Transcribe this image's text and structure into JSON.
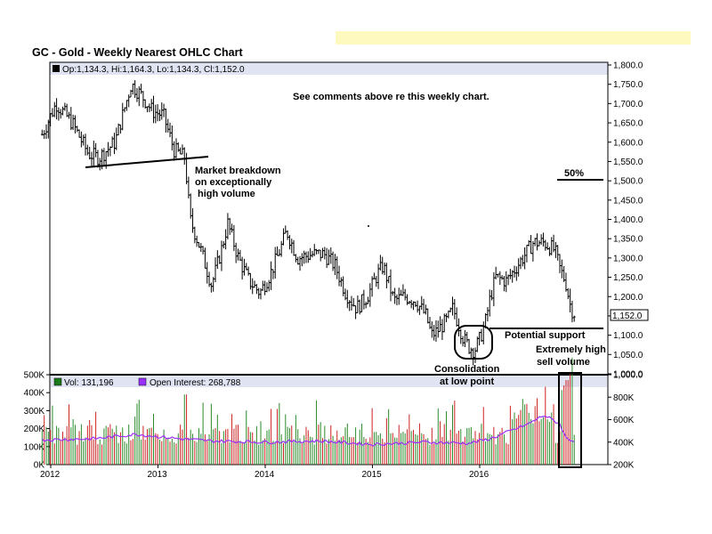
{
  "chart_data": {
    "type": "ohlc",
    "title": "GC - Gold - Weekly Nearest OHLC Chart",
    "legend_price": "Op:1,134.3, Hi:1,164.3, Lo:1,134.3, Cl:1,152.0",
    "last_price_label": "1,152.0",
    "x_tick_labels": [
      "2012",
      "2013",
      "2014",
      "2015",
      "2016"
    ],
    "price_axis": {
      "min": 1000,
      "max": 1800,
      "step": 50,
      "tick_labels": [
        "1,000.0",
        "1,050.0",
        "1,100.0",
        "1,150.0",
        "1,200.0",
        "1,250.0",
        "1,300.0",
        "1,350.0",
        "1,400.0",
        "1,450.0",
        "1,500.0",
        "1,550.0",
        "1,600.0",
        "1,650.0",
        "1,700.0",
        "1,750.0",
        "1,800.0"
      ]
    },
    "volume_axis": {
      "min": 0,
      "max": 500000,
      "tick_labels": [
        "0K",
        "100K",
        "200K",
        "300K",
        "400K",
        "500K"
      ]
    },
    "oi_axis": {
      "min": 200000,
      "max": 1000000,
      "tick_labels": [
        "200K",
        "400K",
        "600K",
        "800K",
        "1,000.0"
      ]
    },
    "volume_legend": "Vol: 131,196",
    "oi_legend": "Open Interest: 268,788",
    "price_anchors": [
      [
        2011.92,
        1620
      ],
      [
        2012.05,
        1700
      ],
      [
        2012.2,
        1650
      ],
      [
        2012.35,
        1570
      ],
      [
        2012.45,
        1560
      ],
      [
        2012.6,
        1600
      ],
      [
        2012.75,
        1750
      ],
      [
        2012.85,
        1720
      ],
      [
        2012.95,
        1680
      ],
      [
        2013.05,
        1670
      ],
      [
        2013.15,
        1580
      ],
      [
        2013.25,
        1560
      ],
      [
        2013.3,
        1400
      ],
      [
        2013.4,
        1320
      ],
      [
        2013.5,
        1230
      ],
      [
        2013.6,
        1330
      ],
      [
        2013.65,
        1390
      ],
      [
        2013.75,
        1300
      ],
      [
        2013.85,
        1240
      ],
      [
        2013.95,
        1210
      ],
      [
        2014.05,
        1260
      ],
      [
        2014.15,
        1330
      ],
      [
        2014.2,
        1370
      ],
      [
        2014.3,
        1300
      ],
      [
        2014.45,
        1310
      ],
      [
        2014.55,
        1310
      ],
      [
        2014.65,
        1280
      ],
      [
        2014.75,
        1210
      ],
      [
        2014.85,
        1170
      ],
      [
        2014.95,
        1200
      ],
      [
        2015.05,
        1260
      ],
      [
        2015.1,
        1280
      ],
      [
        2015.2,
        1190
      ],
      [
        2015.3,
        1200
      ],
      [
        2015.4,
        1190
      ],
      [
        2015.5,
        1150
      ],
      [
        2015.55,
        1100
      ],
      [
        2015.6,
        1110
      ],
      [
        2015.7,
        1140
      ],
      [
        2015.75,
        1170
      ],
      [
        2015.85,
        1090
      ],
      [
        2015.9,
        1070
      ],
      [
        2015.95,
        1060
      ],
      [
        2016.0,
        1090
      ],
      [
        2016.05,
        1130
      ],
      [
        2016.1,
        1200
      ],
      [
        2016.15,
        1250
      ],
      [
        2016.25,
        1240
      ],
      [
        2016.35,
        1280
      ],
      [
        2016.45,
        1320
      ],
      [
        2016.5,
        1340
      ],
      [
        2016.6,
        1340
      ],
      [
        2016.7,
        1320
      ],
      [
        2016.75,
        1270
      ],
      [
        2016.8,
        1240
      ],
      [
        2016.85,
        1170
      ],
      [
        2016.9,
        1150
      ]
    ],
    "oi_anchors": [
      [
        2011.92,
        420000
      ],
      [
        2012.4,
        430000
      ],
      [
        2012.8,
        470000
      ],
      [
        2013.2,
        430000
      ],
      [
        2013.5,
        410000
      ],
      [
        2014.0,
        400000
      ],
      [
        2014.5,
        410000
      ],
      [
        2015.0,
        380000
      ],
      [
        2015.5,
        400000
      ],
      [
        2015.9,
        390000
      ],
      [
        2016.1,
        430000
      ],
      [
        2016.45,
        560000
      ],
      [
        2016.6,
        640000
      ],
      [
        2016.75,
        560000
      ],
      [
        2016.8,
        440000
      ],
      [
        2016.9,
        400000
      ]
    ],
    "annotations": [
      "See comments above re this weekly chart.",
      "Market breakdown",
      "on exceptionally",
      "high volume",
      "50%",
      "Potential support",
      "Extremely high",
      "sell volume",
      "Consolidation",
      "at low point"
    ]
  }
}
